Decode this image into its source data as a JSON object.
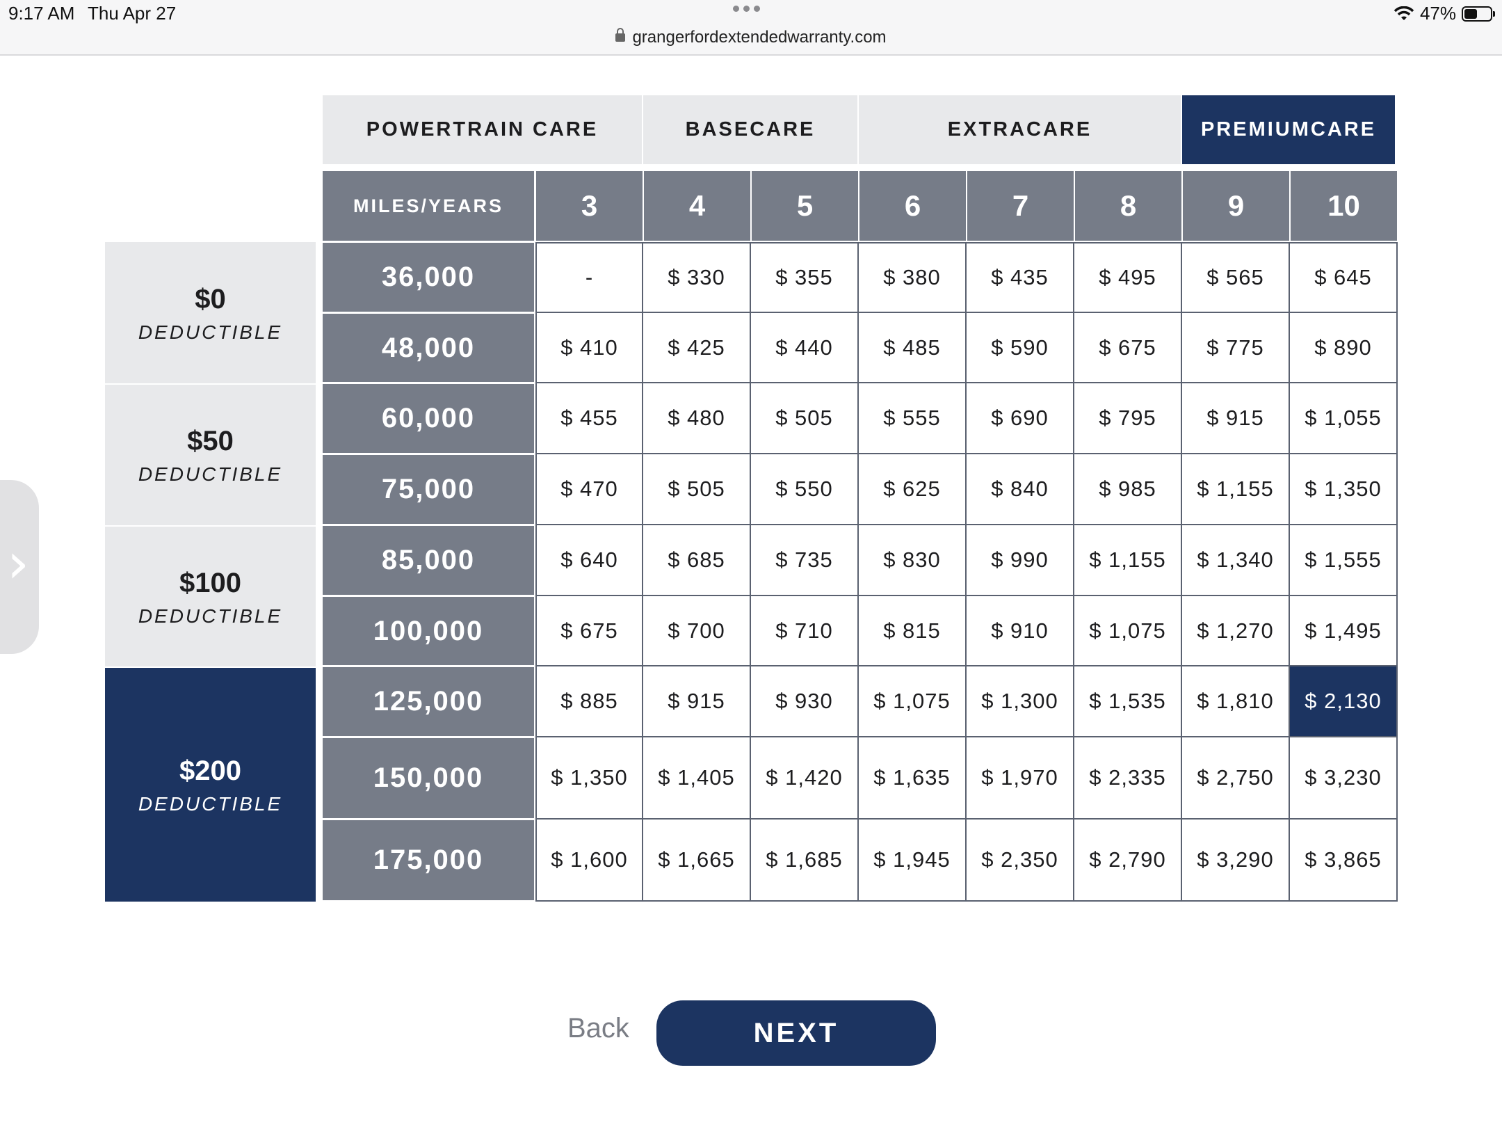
{
  "status_bar": {
    "time": "9:17 AM",
    "date": "Thu Apr 27",
    "url": "grangerfordextendedwarranty.com",
    "battery": "47%"
  },
  "plans": [
    {
      "label": "POWERTRAIN CARE",
      "active": false
    },
    {
      "label": "BASECARE",
      "active": false
    },
    {
      "label": "EXTRACARE",
      "active": false
    },
    {
      "label": "PREMIUMCARE",
      "active": true
    }
  ],
  "table": {
    "corner_label": "MILES/YEARS",
    "years": [
      "3",
      "4",
      "5",
      "6",
      "7",
      "8",
      "9",
      "10"
    ],
    "deductibles": [
      {
        "amount": "$0",
        "label": "DEDUCTIBLE",
        "active": false
      },
      {
        "amount": "$50",
        "label": "DEDUCTIBLE",
        "active": false
      },
      {
        "amount": "$100",
        "label": "DEDUCTIBLE",
        "active": false
      },
      {
        "amount": "$200",
        "label": "DEDUCTIBLE",
        "active": true
      }
    ],
    "rows": [
      {
        "miles": "36,000",
        "prices": [
          "-",
          "$ 330",
          "$ 355",
          "$ 380",
          "$ 435",
          "$ 495",
          "$ 565",
          "$ 645"
        ]
      },
      {
        "miles": "48,000",
        "prices": [
          "$ 410",
          "$ 425",
          "$ 440",
          "$ 485",
          "$ 590",
          "$ 675",
          "$ 775",
          "$ 890"
        ]
      },
      {
        "miles": "60,000",
        "prices": [
          "$ 455",
          "$ 480",
          "$ 505",
          "$ 555",
          "$ 690",
          "$ 795",
          "$ 915",
          "$ 1,055"
        ]
      },
      {
        "miles": "75,000",
        "prices": [
          "$ 470",
          "$ 505",
          "$ 550",
          "$ 625",
          "$ 840",
          "$ 985",
          "$ 1,155",
          "$ 1,350"
        ]
      },
      {
        "miles": "85,000",
        "prices": [
          "$ 640",
          "$ 685",
          "$ 735",
          "$ 830",
          "$ 990",
          "$ 1,155",
          "$ 1,340",
          "$ 1,555"
        ]
      },
      {
        "miles": "100,000",
        "prices": [
          "$ 675",
          "$ 700",
          "$ 710",
          "$ 815",
          "$ 910",
          "$ 1,075",
          "$ 1,270",
          "$ 1,495"
        ]
      },
      {
        "miles": "125,000",
        "prices": [
          "$ 885",
          "$ 915",
          "$ 930",
          "$ 1,075",
          "$ 1,300",
          "$ 1,535",
          "$ 1,810",
          "$ 2,130"
        ]
      },
      {
        "miles": "150,000",
        "prices": [
          "$ 1,350",
          "$ 1,405",
          "$ 1,420",
          "$ 1,635",
          "$ 1,970",
          "$ 2,335",
          "$ 2,750",
          "$ 3,230"
        ]
      },
      {
        "miles": "175,000",
        "prices": [
          "$ 1,600",
          "$ 1,665",
          "$ 1,685",
          "$ 1,945",
          "$ 2,350",
          "$ 2,790",
          "$ 3,290",
          "$ 3,865"
        ]
      }
    ],
    "selected": {
      "row": 6,
      "col": 7
    }
  },
  "navigation": {
    "back_label": "Back",
    "next_label": "NEXT"
  },
  "colors": {
    "accent": "#1c3461",
    "header_gray": "#767c88",
    "light_gray": "#e8e9eb"
  }
}
